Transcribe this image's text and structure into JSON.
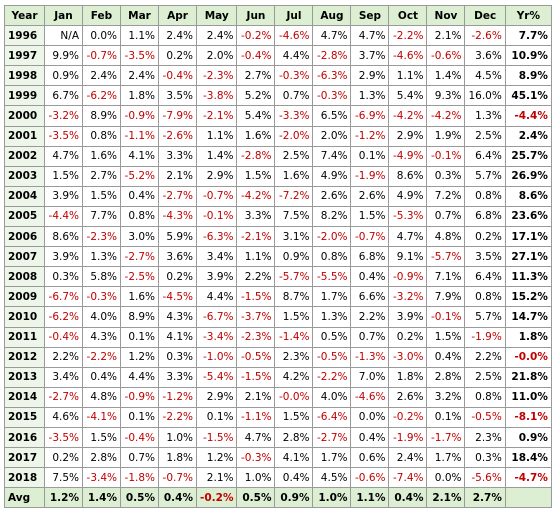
{
  "table": {
    "header": [
      "Year",
      "Jan",
      "Feb",
      "Mar",
      "Apr",
      "May",
      "Jun",
      "Jul",
      "Aug",
      "Sep",
      "Oct",
      "Nov",
      "Dec",
      "Yr%"
    ],
    "rows": [
      [
        "1996",
        "N/A",
        "0.0%",
        "1.1%",
        "2.4%",
        "2.4%",
        "-0.2%",
        "-4.6%",
        "4.7%",
        "4.7%",
        "-2.2%",
        "2.1%",
        "-2.6%",
        "7.7%"
      ],
      [
        "1997",
        "9.9%",
        "-0.7%",
        "-3.5%",
        "0.2%",
        "2.0%",
        "-0.4%",
        "4.4%",
        "-2.8%",
        "3.7%",
        "-4.6%",
        "-0.6%",
        "3.6%",
        "10.9%"
      ],
      [
        "1998",
        "0.9%",
        "2.4%",
        "2.4%",
        "-0.4%",
        "-2.3%",
        "2.7%",
        "-0.3%",
        "-6.3%",
        "2.9%",
        "1.1%",
        "1.4%",
        "4.5%",
        "8.9%"
      ],
      [
        "1999",
        "6.7%",
        "-6.2%",
        "1.8%",
        "3.5%",
        "-3.8%",
        "5.2%",
        "0.7%",
        "-0.3%",
        "1.3%",
        "5.4%",
        "9.3%",
        "16.0%",
        "45.1%"
      ],
      [
        "2000",
        "-3.2%",
        "8.9%",
        "-0.9%",
        "-7.9%",
        "-2.1%",
        "5.4%",
        "-3.3%",
        "6.5%",
        "-6.9%",
        "-4.2%",
        "-4.2%",
        "1.3%",
        "-4.4%"
      ],
      [
        "2001",
        "-3.5%",
        "0.8%",
        "-1.1%",
        "-2.6%",
        "1.1%",
        "1.6%",
        "-2.0%",
        "2.0%",
        "-1.2%",
        "2.9%",
        "1.9%",
        "2.5%",
        "2.4%"
      ],
      [
        "2002",
        "4.7%",
        "1.6%",
        "4.1%",
        "3.3%",
        "1.4%",
        "-2.8%",
        "2.5%",
        "7.4%",
        "0.1%",
        "-4.9%",
        "-0.1%",
        "6.4%",
        "25.7%"
      ],
      [
        "2003",
        "1.5%",
        "2.7%",
        "-5.2%",
        "2.1%",
        "2.9%",
        "1.5%",
        "1.6%",
        "4.9%",
        "-1.9%",
        "8.6%",
        "0.3%",
        "5.7%",
        "26.9%"
      ],
      [
        "2004",
        "3.9%",
        "1.5%",
        "0.4%",
        "-2.7%",
        "-0.7%",
        "-4.2%",
        "-7.2%",
        "2.6%",
        "2.6%",
        "4.9%",
        "7.2%",
        "0.8%",
        "8.6%"
      ],
      [
        "2005",
        "-4.4%",
        "7.7%",
        "0.8%",
        "-4.3%",
        "-0.1%",
        "3.3%",
        "7.5%",
        "8.2%",
        "1.5%",
        "-5.3%",
        "0.7%",
        "6.8%",
        "23.6%"
      ],
      [
        "2006",
        "8.6%",
        "-2.3%",
        "3.0%",
        "5.9%",
        "-6.3%",
        "-2.1%",
        "3.1%",
        "-2.0%",
        "-0.7%",
        "4.7%",
        "4.8%",
        "0.2%",
        "17.1%"
      ],
      [
        "2007",
        "3.9%",
        "1.3%",
        "-2.7%",
        "3.6%",
        "3.4%",
        "1.1%",
        "0.9%",
        "0.8%",
        "6.8%",
        "9.1%",
        "-5.7%",
        "3.5%",
        "27.1%"
      ],
      [
        "2008",
        "0.3%",
        "5.8%",
        "-2.5%",
        "0.2%",
        "3.9%",
        "2.2%",
        "-5.7%",
        "-5.5%",
        "0.4%",
        "-0.9%",
        "7.1%",
        "6.4%",
        "11.3%"
      ],
      [
        "2009",
        "-6.7%",
        "-0.3%",
        "1.6%",
        "-4.5%",
        "4.4%",
        "-1.5%",
        "8.7%",
        "1.7%",
        "6.6%",
        "-3.2%",
        "7.9%",
        "0.8%",
        "15.2%"
      ],
      [
        "2010",
        "-6.2%",
        "4.0%",
        "8.9%",
        "4.3%",
        "-6.7%",
        "-3.7%",
        "1.5%",
        "1.3%",
        "2.2%",
        "3.9%",
        "-0.1%",
        "5.7%",
        "14.7%"
      ],
      [
        "2011",
        "-0.4%",
        "4.3%",
        "0.1%",
        "4.1%",
        "-3.4%",
        "-2.3%",
        "-1.4%",
        "0.5%",
        "0.7%",
        "0.2%",
        "1.5%",
        "-1.9%",
        "1.8%"
      ],
      [
        "2012",
        "2.2%",
        "-2.2%",
        "1.2%",
        "0.3%",
        "-1.0%",
        "-0.5%",
        "2.3%",
        "-0.5%",
        "-1.3%",
        "-3.0%",
        "0.4%",
        "2.2%",
        "-0.0%"
      ],
      [
        "2013",
        "3.4%",
        "0.4%",
        "4.4%",
        "3.3%",
        "-5.4%",
        "-1.5%",
        "4.2%",
        "-2.2%",
        "7.0%",
        "1.8%",
        "2.8%",
        "2.5%",
        "21.8%"
      ],
      [
        "2014",
        "-2.7%",
        "4.8%",
        "-0.9%",
        "-1.2%",
        "2.9%",
        "2.1%",
        "-0.0%",
        "4.0%",
        "-4.6%",
        "2.6%",
        "3.2%",
        "0.8%",
        "11.0%"
      ],
      [
        "2015",
        "4.6%",
        "-4.1%",
        "0.1%",
        "-2.2%",
        "0.1%",
        "-1.1%",
        "1.5%",
        "-6.4%",
        "0.0%",
        "-0.2%",
        "0.1%",
        "-0.5%",
        "-8.1%"
      ],
      [
        "2016",
        "-3.5%",
        "1.5%",
        "-0.4%",
        "1.0%",
        "-1.5%",
        "4.7%",
        "2.8%",
        "-2.7%",
        "0.4%",
        "-1.9%",
        "-1.7%",
        "2.3%",
        "0.9%"
      ],
      [
        "2017",
        "0.2%",
        "2.8%",
        "0.7%",
        "1.8%",
        "1.2%",
        "-0.3%",
        "4.1%",
        "1.7%",
        "0.6%",
        "2.4%",
        "1.7%",
        "0.3%",
        "18.4%"
      ],
      [
        "2018",
        "7.5%",
        "-3.4%",
        "-1.8%",
        "-0.7%",
        "2.1%",
        "1.0%",
        "0.4%",
        "4.5%",
        "-0.6%",
        "-7.4%",
        "0.0%",
        "-5.6%",
        "-4.7%"
      ]
    ],
    "avg": [
      "Avg",
      "1.2%",
      "1.4%",
      "0.5%",
      "0.4%",
      "-0.2%",
      "0.5%",
      "0.9%",
      "1.0%",
      "1.1%",
      "0.4%",
      "2.1%",
      "2.7%"
    ]
  }
}
